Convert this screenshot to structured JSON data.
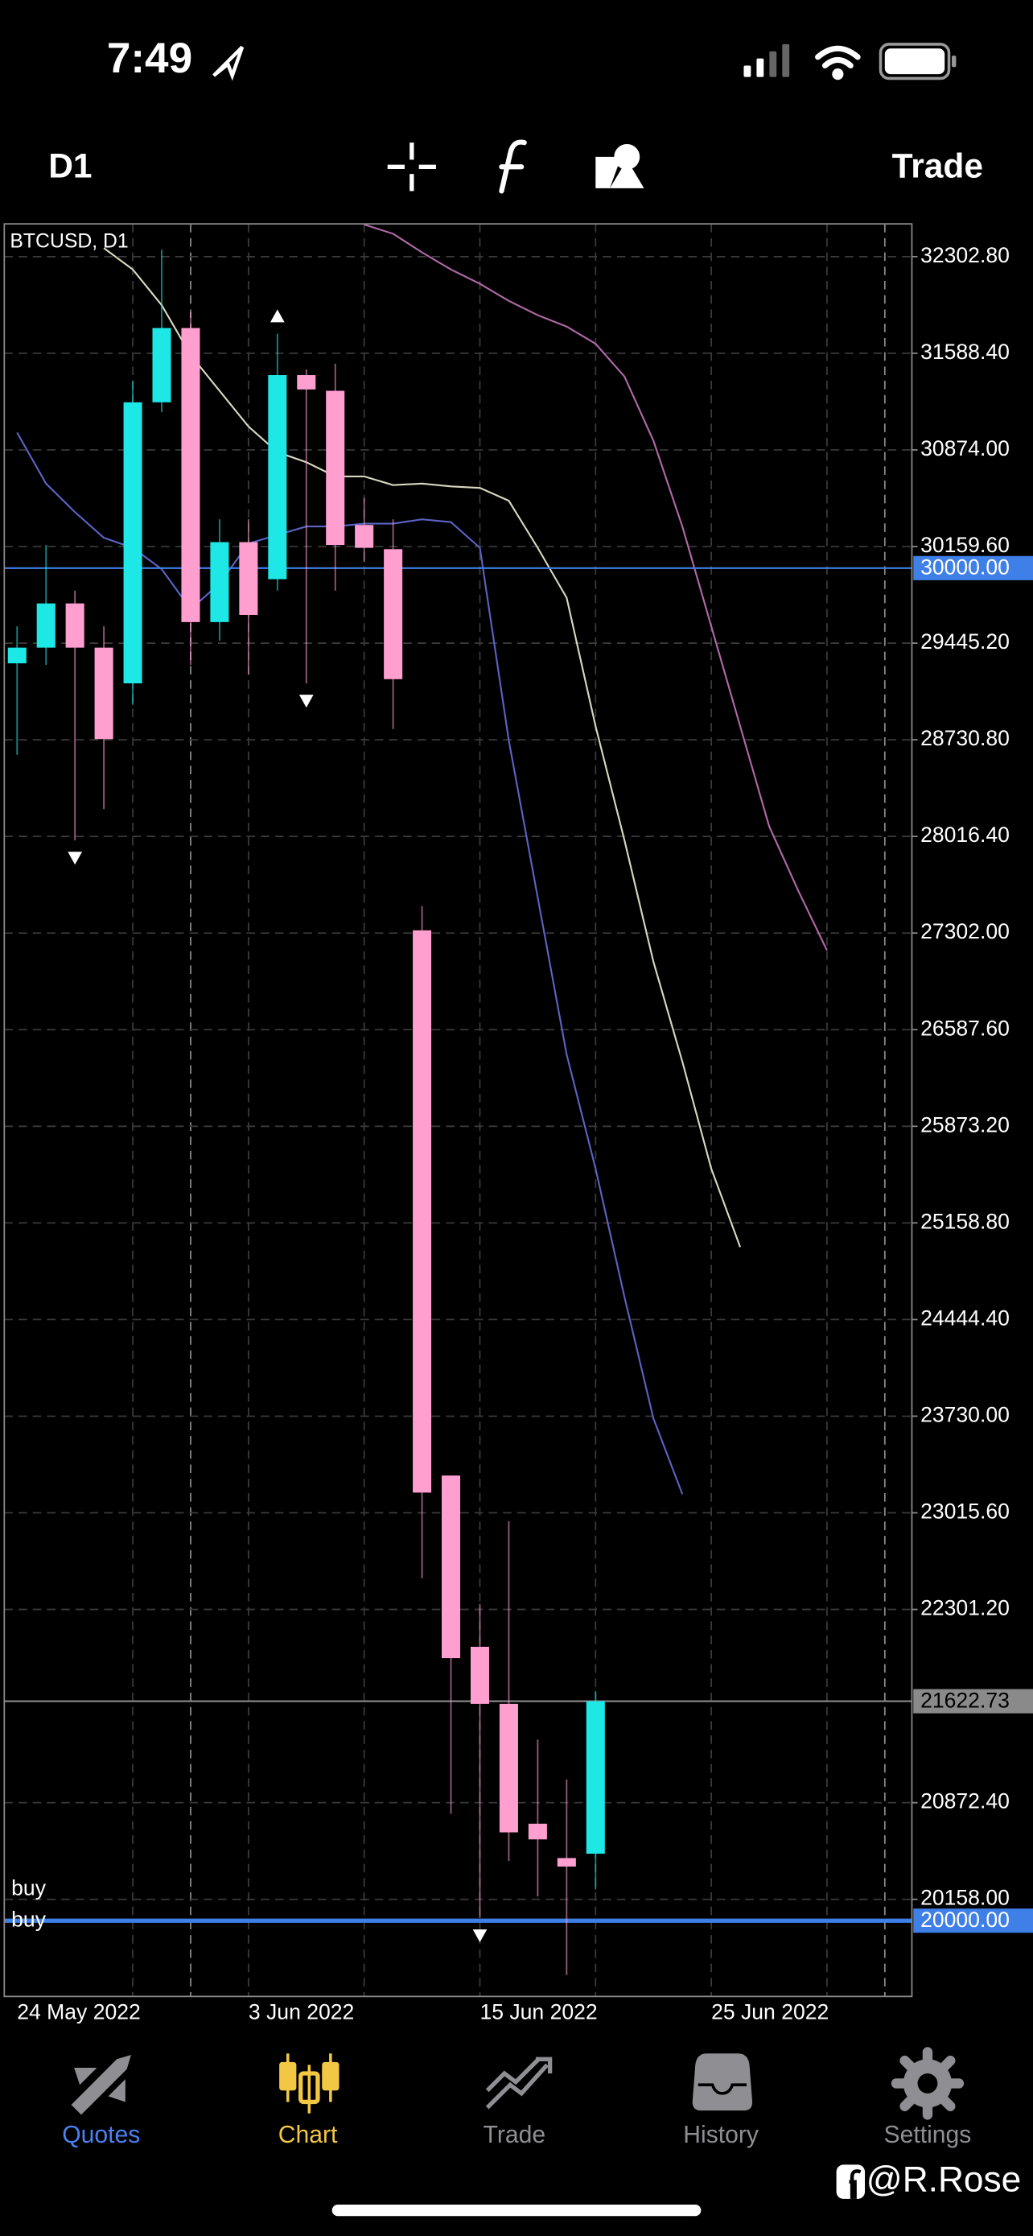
{
  "status_bar": {
    "time": "7:49"
  },
  "toolbar": {
    "timeframe": "D1",
    "trade": "Trade"
  },
  "chart_data": {
    "type": "candlestick",
    "title": "BTCUSD, D1",
    "categories": [
      "24 May 2022",
      null,
      null,
      null,
      null,
      null,
      null,
      null,
      "3 Jun 2022",
      null,
      null,
      null,
      null,
      null,
      null,
      null,
      "15 Jun 2022",
      null,
      null,
      null,
      null,
      null,
      null,
      null,
      "25 Jun 2022",
      null,
      null,
      null,
      null,
      null,
      null
    ],
    "open": [
      29296,
      29412,
      29739,
      29412,
      29148,
      31226,
      31775,
      29601,
      30192,
      29918,
      31427,
      31311,
      30319,
      30140,
      27322,
      23291,
      22025,
      21603,
      20717,
      20463,
      20495,
      null,
      null,
      null,
      null,
      null,
      null,
      null,
      null,
      null,
      null
    ],
    "high": [
      29570,
      30171,
      29834,
      29570,
      31385,
      32355,
      31891,
      30361,
      30361,
      31733,
      31469,
      31511,
      30519,
      30361,
      27502,
      23291,
      22342,
      22954,
      21339,
      21044,
      21698,
      null,
      null,
      null,
      null,
      null,
      null,
      null,
      null,
      null,
      null
    ],
    "low": [
      28620,
      29285,
      27987,
      28219,
      28989,
      31153,
      29285,
      29464,
      29211,
      29834,
      29148,
      29834,
      30045,
      28810,
      22532,
      20790,
      20020,
      20442,
      20179,
      19598,
      20231,
      null,
      null,
      null,
      null,
      null,
      null,
      null,
      null,
      null,
      null
    ],
    "close": [
      29412,
      29739,
      29412,
      28736,
      31226,
      31775,
      29601,
      30192,
      29654,
      31427,
      31321,
      30171,
      30150,
      29179,
      23165,
      21941,
      21603,
      20653,
      20601,
      20400,
      21622.73,
      null,
      null,
      null,
      null,
      null,
      null,
      null,
      null,
      null,
      null
    ],
    "up_color": "#1ee8e6",
    "down_color": "#ff9fd0",
    "series": [
      {
        "color": "#b069a8",
        "values": [
          null,
          null,
          null,
          null,
          null,
          null,
          null,
          null,
          null,
          null,
          null,
          null,
          32540,
          32472,
          32334,
          32208,
          32102,
          31976,
          31870,
          31786,
          31659,
          31416,
          30942,
          30308,
          29570,
          28831,
          28092,
          27618,
          27174,
          null,
          null
        ]
      },
      {
        "color": "#d8d8c0",
        "values": [
          null,
          null,
          null,
          32366,
          32208,
          31944,
          31575,
          31311,
          31047,
          30857,
          30783,
          30678,
          30678,
          30614,
          30625,
          30604,
          30593,
          30498,
          30150,
          29781,
          28831,
          27987,
          27090,
          26351,
          25560,
          24980,
          null,
          null,
          null,
          null,
          null
        ]
      },
      {
        "color": "#5b63c4",
        "values": [
          31002,
          30625,
          30414,
          30224,
          30150,
          29992,
          29696,
          29886,
          30182,
          30245,
          30308,
          30308,
          30329,
          30329,
          30361,
          30340,
          30150,
          28726,
          27565,
          26404,
          25560,
          24610,
          23713,
          23154,
          null,
          null,
          null,
          null,
          null,
          null,
          null
        ]
      }
    ],
    "ylim": [
      19440,
      32545
    ],
    "yticks": [
      {
        "value": 32302.8,
        "label": "32302.80"
      },
      {
        "value": 31588.4,
        "label": "31588.40"
      },
      {
        "value": 30874,
        "label": "30874.00"
      },
      {
        "value": 30159.6,
        "label": "30159.60"
      },
      {
        "value": 29445.2,
        "label": "29445.20"
      },
      {
        "value": 28730.8,
        "label": "28730.80"
      },
      {
        "value": 28016.4,
        "label": "28016.40"
      },
      {
        "value": 27302,
        "label": "27302.00"
      },
      {
        "value": 26587.6,
        "label": "26587.60"
      },
      {
        "value": 25873.2,
        "label": "25873.20"
      },
      {
        "value": 25158.8,
        "label": "25158.80"
      },
      {
        "value": 24444.4,
        "label": "24444.40"
      },
      {
        "value": 23730,
        "label": "23730.00"
      },
      {
        "value": 23015.6,
        "label": "23015.60"
      },
      {
        "value": 22301.2,
        "label": "22301.20"
      },
      {
        "value": 20872.4,
        "label": "20872.40"
      },
      {
        "value": 20158,
        "label": "20158.00"
      }
    ],
    "grid": true,
    "price_lines": [
      {
        "value": 30000,
        "label": "30000.00",
        "color": "#3f7fe8"
      },
      {
        "value": 21622.73,
        "label": "21622.73",
        "color": "#8a8a8a"
      },
      {
        "value": 20000,
        "label": "20000.00",
        "color": "#3f7fe8"
      }
    ],
    "annotations": [
      "buy",
      "buy"
    ],
    "fractals": {
      "up": [
        9
      ],
      "down": [
        2,
        10,
        16
      ]
    }
  },
  "tab_bar": {
    "tabs": [
      {
        "label": "Quotes",
        "color": "#4d80f2"
      },
      {
        "label": "Chart",
        "color": "#f2c744"
      },
      {
        "label": "Trade",
        "color": "#8e8e93"
      },
      {
        "label": "History",
        "color": "#8e8e93"
      },
      {
        "label": "Settings",
        "color": "#8e8e93"
      }
    ]
  },
  "watermark": "@R.Rose"
}
